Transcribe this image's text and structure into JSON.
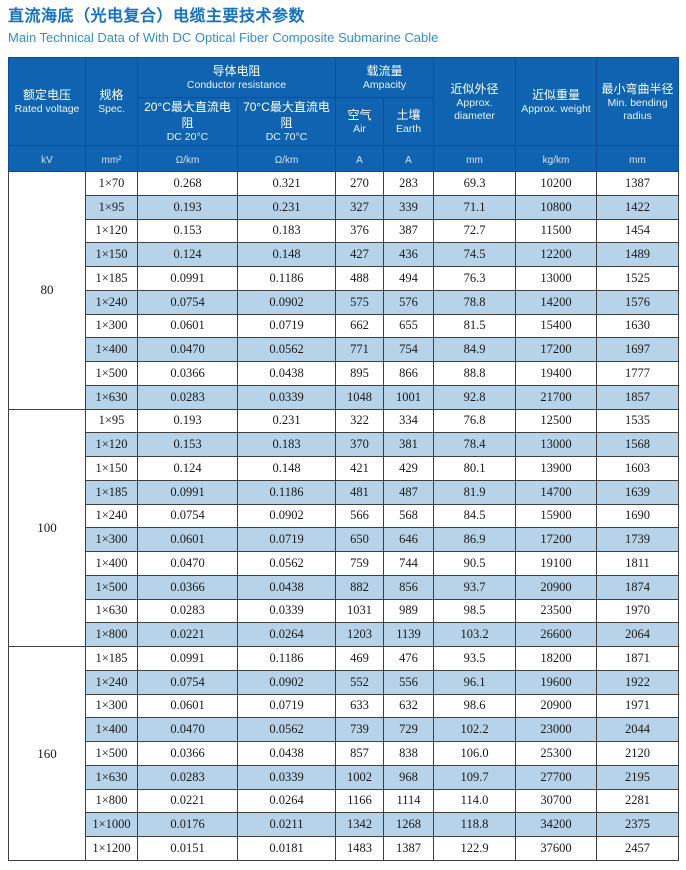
{
  "page": {
    "title_zh": "直流海底（光电复合）电缆主要技术参数",
    "title_en": "Main Technical Data of With DC Optical Fiber Composite Submarine Cable"
  },
  "colors": {
    "header_bg": "#0f63b0",
    "header_border": "#0a4d94",
    "stripe_bg": "#b7d3e9",
    "title_zh_color": "#1472c4",
    "title_en_color": "#2e90d6",
    "grid_border": "#404040"
  },
  "table": {
    "header": {
      "rated_voltage": {
        "zh": "额定电压",
        "en": "Rated voltage",
        "unit": "kV"
      },
      "spec": {
        "zh": "规格",
        "en": "Spec.",
        "unit": "mm²"
      },
      "conductor_resistance": {
        "zh": "导体电阻",
        "en": "Conductor resistance"
      },
      "dc20": {
        "zh": "20°C最大直流电阻",
        "en": "DC 20°C",
        "unit": "Ω/km"
      },
      "dc70": {
        "zh": "70°C最大直流电阻",
        "en": "DC 70°C",
        "unit": "Ω/km"
      },
      "ampacity": {
        "zh": "载流量",
        "en": "Ampacity"
      },
      "air": {
        "zh": "空气",
        "en": "Air",
        "unit": "A"
      },
      "earth": {
        "zh": "土壤",
        "en": "Earth",
        "unit": "A"
      },
      "diameter": {
        "zh": "近似外径",
        "en": "Approx. diameter",
        "unit": "mm"
      },
      "weight": {
        "zh": "近似重量",
        "en": "Approx. weight",
        "unit": "kg/km"
      },
      "radius": {
        "zh": "最小弯曲半径",
        "en": "Min. bending radius",
        "unit": "mm"
      }
    },
    "sections": [
      {
        "voltage": "80",
        "rows": [
          [
            "1×70",
            "0.268",
            "0.321",
            "270",
            "283",
            "69.3",
            "10200",
            "1387"
          ],
          [
            "1×95",
            "0.193",
            "0.231",
            "327",
            "339",
            "71.1",
            "10800",
            "1422"
          ],
          [
            "1×120",
            "0.153",
            "0.183",
            "376",
            "387",
            "72.7",
            "11500",
            "1454"
          ],
          [
            "1×150",
            "0.124",
            "0.148",
            "427",
            "436",
            "74.5",
            "12200",
            "1489"
          ],
          [
            "1×185",
            "0.0991",
            "0.1186",
            "488",
            "494",
            "76.3",
            "13000",
            "1525"
          ],
          [
            "1×240",
            "0.0754",
            "0.0902",
            "575",
            "576",
            "78.8",
            "14200",
            "1576"
          ],
          [
            "1×300",
            "0.0601",
            "0.0719",
            "662",
            "655",
            "81.5",
            "15400",
            "1630"
          ],
          [
            "1×400",
            "0.0470",
            "0.0562",
            "771",
            "754",
            "84.9",
            "17200",
            "1697"
          ],
          [
            "1×500",
            "0.0366",
            "0.0438",
            "895",
            "866",
            "88.8",
            "19400",
            "1777"
          ],
          [
            "1×630",
            "0.0283",
            "0.0339",
            "1048",
            "1001",
            "92.8",
            "21700",
            "1857"
          ]
        ]
      },
      {
        "voltage": "100",
        "rows": [
          [
            "1×95",
            "0.193",
            "0.231",
            "322",
            "334",
            "76.8",
            "12500",
            "1535"
          ],
          [
            "1×120",
            "0.153",
            "0.183",
            "370",
            "381",
            "78.4",
            "13000",
            "1568"
          ],
          [
            "1×150",
            "0.124",
            "0.148",
            "421",
            "429",
            "80.1",
            "13900",
            "1603"
          ],
          [
            "1×185",
            "0.0991",
            "0.1186",
            "481",
            "487",
            "81.9",
            "14700",
            "1639"
          ],
          [
            "1×240",
            "0.0754",
            "0.0902",
            "566",
            "568",
            "84.5",
            "15900",
            "1690"
          ],
          [
            "1×300",
            "0.0601",
            "0.0719",
            "650",
            "646",
            "86.9",
            "17200",
            "1739"
          ],
          [
            "1×400",
            "0.0470",
            "0.0562",
            "759",
            "744",
            "90.5",
            "19100",
            "1811"
          ],
          [
            "1×500",
            "0.0366",
            "0.0438",
            "882",
            "856",
            "93.7",
            "20900",
            "1874"
          ],
          [
            "1×630",
            "0.0283",
            "0.0339",
            "1031",
            "989",
            "98.5",
            "23500",
            "1970"
          ],
          [
            "1×800",
            "0.0221",
            "0.0264",
            "1203",
            "1139",
            "103.2",
            "26600",
            "2064"
          ]
        ]
      },
      {
        "voltage": "160",
        "rows": [
          [
            "1×185",
            "0.0991",
            "0.1186",
            "469",
            "476",
            "93.5",
            "18200",
            "1871"
          ],
          [
            "1×240",
            "0.0754",
            "0.0902",
            "552",
            "556",
            "96.1",
            "19600",
            "1922"
          ],
          [
            "1×300",
            "0.0601",
            "0.0719",
            "633",
            "632",
            "98.6",
            "20900",
            "1971"
          ],
          [
            "1×400",
            "0.0470",
            "0.0562",
            "739",
            "729",
            "102.2",
            "23000",
            "2044"
          ],
          [
            "1×500",
            "0.0366",
            "0.0438",
            "857",
            "838",
            "106.0",
            "25300",
            "2120"
          ],
          [
            "1×630",
            "0.0283",
            "0.0339",
            "1002",
            "968",
            "109.7",
            "27700",
            "2195"
          ],
          [
            "1×800",
            "0.0221",
            "0.0264",
            "1166",
            "1114",
            "114.0",
            "30700",
            "2281"
          ],
          [
            "1×1000",
            "0.0176",
            "0.0211",
            "1342",
            "1268",
            "118.8",
            "34200",
            "2375"
          ],
          [
            "1×1200",
            "0.0151",
            "0.0181",
            "1483",
            "1387",
            "122.9",
            "37600",
            "2457"
          ]
        ]
      }
    ]
  }
}
